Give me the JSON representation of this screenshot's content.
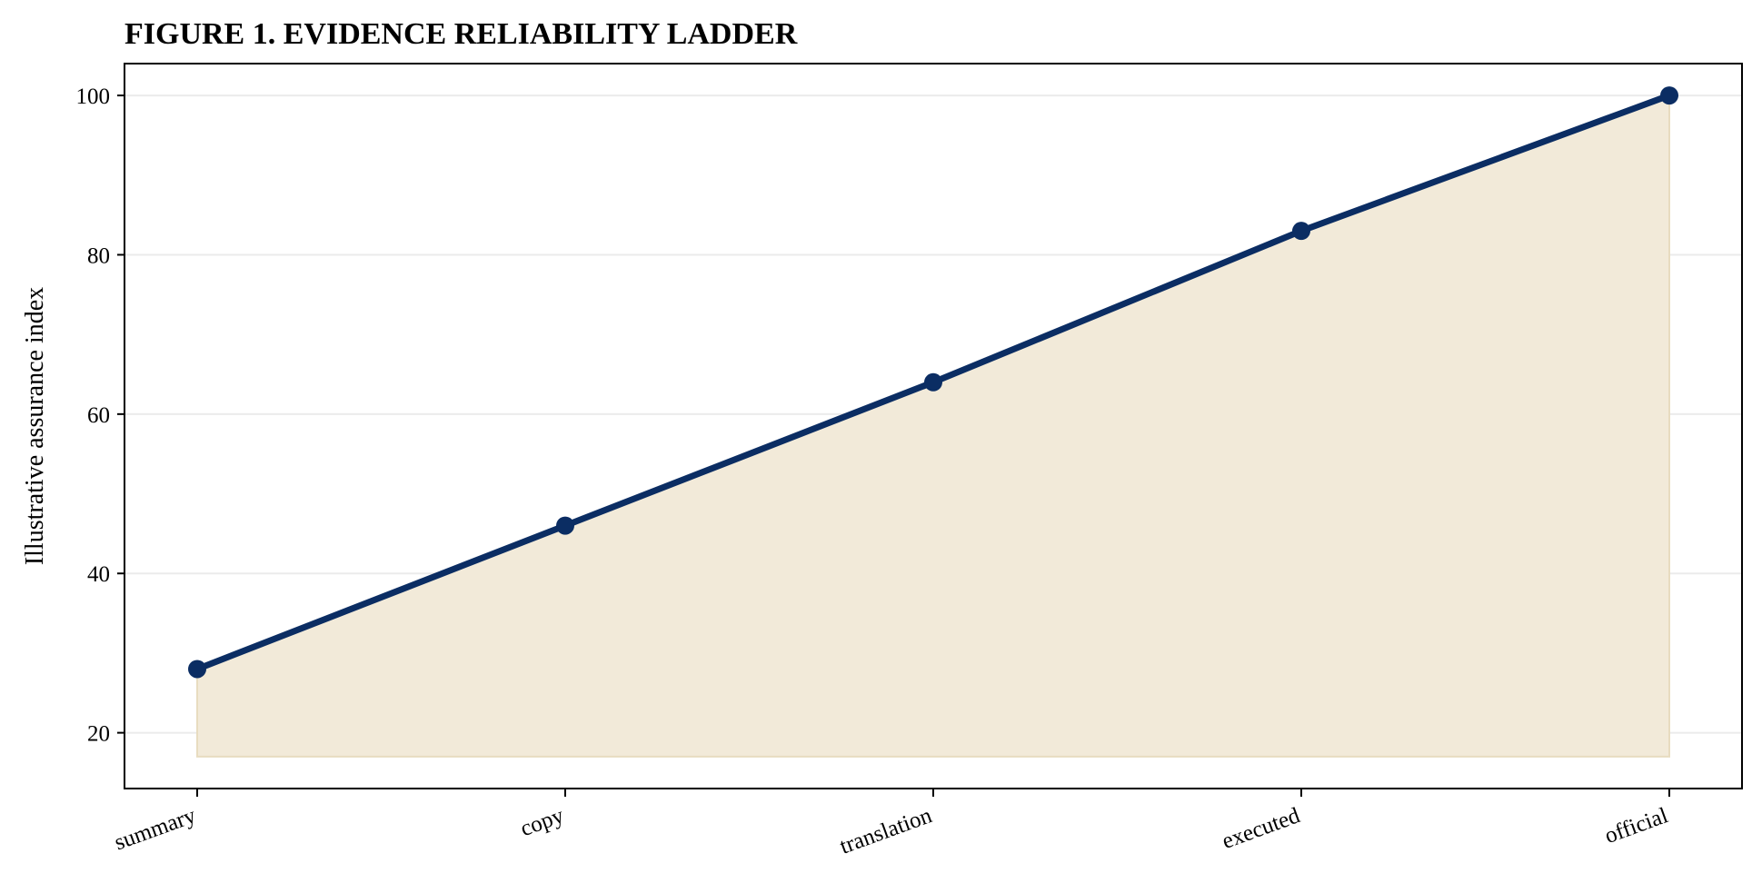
{
  "chart_data": {
    "type": "line",
    "title": "FIGURE 1. EVIDENCE RELIABILITY LADDER",
    "xlabel": "",
    "ylabel": "Illustrative assurance index",
    "categories": [
      "summary",
      "copy",
      "translation",
      "executed",
      "official"
    ],
    "series": [
      {
        "values": [
          28,
          46,
          64,
          83,
          100
        ]
      }
    ],
    "fill_baseline": 17,
    "ylim": [
      13,
      104
    ],
    "yticks": [
      20,
      40,
      60,
      80,
      100
    ],
    "grid": "horizontal",
    "legend": "none",
    "x_tick_rotation": "slanted",
    "colors": {
      "line": "#0b2d63",
      "marker": "#0b2d63",
      "fill": "#f2ead9",
      "fill_edge": "#e8dcc0",
      "grid": "#ebebeb",
      "axis": "#000000"
    }
  }
}
